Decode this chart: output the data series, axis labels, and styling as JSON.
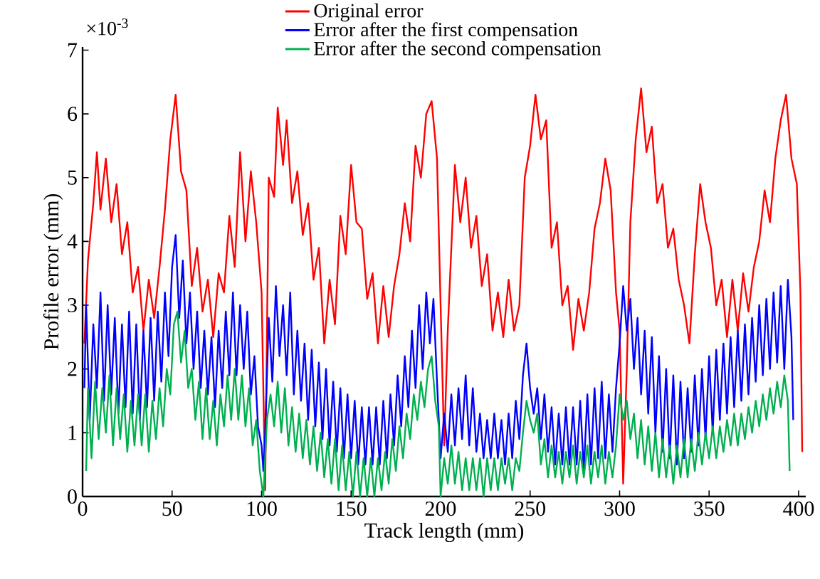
{
  "chart_data": {
    "type": "line",
    "xlabel": "Track length (mm)",
    "ylabel": "Profile error (mm)",
    "annotations": [
      "×10$^{-3}$"
    ],
    "xlim": [
      0,
      404
    ],
    "ylim": [
      0,
      7.05
    ],
    "xticks": [
      0,
      50,
      100,
      150,
      200,
      250,
      300,
      350,
      400
    ],
    "yticks": [
      0,
      1,
      2,
      3,
      4,
      5,
      6,
      7
    ],
    "legend": "top",
    "grid": false,
    "line_style": "solid",
    "marker": "none",
    "series": [
      {
        "name": "Original error",
        "color": "#ff0000",
        "x": [
          1,
          3,
          6,
          8,
          10,
          13,
          16,
          19,
          22,
          25,
          28,
          31,
          34,
          37,
          40,
          43,
          46,
          49,
          52,
          55,
          58,
          61,
          64,
          67,
          70,
          73,
          76,
          79,
          82,
          85,
          88,
          91,
          94,
          97,
          100,
          102,
          104,
          107,
          109,
          112,
          114,
          117,
          120,
          123,
          126,
          129,
          132,
          135,
          138,
          141,
          144,
          147,
          150,
          153,
          156,
          159,
          162,
          165,
          168,
          171,
          174,
          177,
          180,
          183,
          186,
          189,
          192,
          195,
          198,
          200,
          202,
          204,
          206,
          208,
          211,
          214,
          217,
          220,
          223,
          226,
          229,
          232,
          235,
          238,
          241,
          244,
          247,
          250,
          253,
          256,
          259,
          262,
          265,
          268,
          271,
          274,
          277,
          280,
          283,
          286,
          289,
          292,
          295,
          298,
          300,
          302,
          304,
          306,
          309,
          312,
          315,
          318,
          321,
          324,
          327,
          330,
          333,
          336,
          339,
          342,
          345,
          348,
          351,
          354,
          357,
          360,
          363,
          366,
          369,
          372,
          375,
          378,
          381,
          384,
          387,
          390,
          393,
          396,
          399,
          401,
          402
        ],
        "values": [
          2.4,
          3.7,
          4.6,
          5.4,
          4.5,
          5.3,
          4.3,
          4.9,
          3.8,
          4.3,
          3.2,
          3.6,
          2.6,
          3.4,
          2.8,
          3.6,
          4.5,
          5.6,
          6.3,
          5.1,
          4.8,
          3.3,
          3.9,
          2.9,
          3.4,
          2.5,
          3.5,
          3.2,
          4.4,
          3.6,
          5.4,
          4.0,
          5.1,
          4.3,
          3.2,
          0.1,
          5.0,
          4.7,
          6.1,
          5.2,
          5.9,
          4.6,
          5.1,
          4.1,
          4.6,
          3.4,
          3.9,
          2.4,
          3.4,
          2.7,
          4.4,
          3.8,
          5.2,
          4.3,
          4.2,
          3.1,
          3.5,
          2.4,
          3.3,
          2.5,
          3.3,
          3.8,
          4.6,
          4.0,
          5.5,
          5.0,
          6.0,
          6.2,
          5.3,
          3.0,
          0.8,
          2.6,
          3.9,
          5.2,
          4.3,
          5.0,
          3.9,
          4.4,
          3.3,
          3.8,
          2.6,
          3.2,
          2.5,
          3.4,
          2.6,
          3.0,
          5.0,
          5.5,
          6.3,
          5.6,
          5.9,
          3.9,
          4.3,
          3.0,
          3.3,
          2.3,
          3.1,
          2.6,
          3.2,
          4.2,
          4.6,
          5.3,
          4.8,
          3.2,
          2.6,
          0.2,
          2.0,
          4.3,
          5.6,
          6.4,
          5.4,
          5.8,
          4.6,
          4.9,
          3.9,
          4.2,
          3.4,
          3.0,
          2.4,
          3.8,
          4.9,
          4.3,
          3.9,
          3.0,
          3.4,
          2.5,
          3.4,
          2.6,
          3.5,
          2.9,
          3.6,
          4.0,
          4.8,
          4.3,
          5.3,
          5.9,
          6.3,
          5.3,
          4.9,
          3.2,
          0.7
        ]
      },
      {
        "name": "Error after the first compensation",
        "color": "#0000ff",
        "x": [
          1,
          2,
          4,
          6,
          8,
          10,
          12,
          14,
          16,
          18,
          20,
          22,
          24,
          26,
          28,
          30,
          32,
          34,
          36,
          38,
          40,
          42,
          44,
          46,
          48,
          50,
          52,
          54,
          56,
          58,
          60,
          62,
          64,
          66,
          68,
          70,
          72,
          74,
          76,
          78,
          80,
          82,
          84,
          86,
          88,
          90,
          92,
          94,
          96,
          98,
          100,
          101,
          102,
          104,
          106,
          108,
          110,
          112,
          114,
          116,
          118,
          120,
          122,
          124,
          126,
          128,
          130,
          132,
          134,
          136,
          138,
          140,
          142,
          144,
          146,
          148,
          150,
          152,
          154,
          156,
          158,
          160,
          162,
          164,
          166,
          168,
          170,
          172,
          174,
          176,
          178,
          180,
          182,
          184,
          186,
          188,
          190,
          192,
          194,
          196,
          198,
          200,
          202,
          204,
          206,
          208,
          210,
          212,
          214,
          216,
          218,
          220,
          222,
          224,
          226,
          228,
          230,
          232,
          234,
          236,
          238,
          240,
          242,
          244,
          246,
          248,
          250,
          252,
          254,
          256,
          258,
          260,
          262,
          264,
          266,
          268,
          270,
          272,
          274,
          276,
          278,
          280,
          282,
          284,
          286,
          288,
          290,
          292,
          294,
          296,
          298,
          300,
          302,
          304,
          306,
          308,
          310,
          312,
          314,
          316,
          318,
          320,
          322,
          324,
          326,
          328,
          330,
          332,
          334,
          336,
          338,
          340,
          342,
          344,
          346,
          348,
          350,
          352,
          354,
          356,
          358,
          360,
          362,
          364,
          366,
          368,
          370,
          372,
          374,
          376,
          378,
          380,
          382,
          384,
          386,
          388,
          390,
          392,
          394,
          396,
          397
        ],
        "values": [
          1.7,
          3.0,
          1.2,
          2.7,
          1.7,
          3.2,
          1.5,
          3.0,
          1.6,
          2.8,
          1.3,
          2.7,
          1.4,
          2.9,
          1.3,
          2.7,
          1.2,
          2.6,
          1.4,
          2.8,
          1.5,
          2.9,
          1.8,
          3.2,
          2.2,
          3.6,
          4.1,
          2.8,
          3.7,
          2.4,
          3.2,
          2.0,
          2.9,
          1.7,
          2.6,
          1.6,
          2.5,
          1.4,
          2.6,
          1.7,
          2.9,
          1.9,
          3.2,
          1.9,
          3.0,
          2.0,
          2.9,
          1.6,
          2.2,
          1.1,
          0.8,
          0.4,
          1.0,
          2.8,
          1.8,
          3.3,
          2.2,
          3.0,
          1.9,
          3.2,
          1.6,
          2.6,
          1.5,
          2.4,
          1.2,
          2.3,
          1.1,
          2.1,
          0.9,
          2.0,
          0.8,
          1.8,
          0.7,
          1.7,
          0.6,
          1.6,
          0.6,
          1.5,
          0.5,
          1.4,
          0.5,
          1.4,
          0.5,
          1.4,
          0.5,
          1.5,
          0.6,
          1.6,
          0.8,
          1.9,
          1.1,
          2.2,
          1.4,
          2.6,
          1.7,
          3.0,
          2.0,
          3.2,
          2.4,
          3.1,
          1.8,
          0.6,
          1.3,
          0.7,
          1.6,
          0.8,
          1.7,
          0.9,
          1.9,
          0.8,
          1.7,
          0.7,
          1.3,
          0.6,
          1.2,
          0.6,
          1.3,
          0.6,
          1.2,
          0.5,
          1.3,
          0.6,
          1.5,
          0.9,
          1.9,
          2.4,
          1.7,
          1.3,
          1.7,
          0.9,
          1.6,
          0.7,
          1.4,
          0.5,
          1.3,
          0.5,
          1.4,
          0.5,
          1.4,
          0.5,
          1.5,
          0.4,
          1.6,
          0.5,
          1.7,
          0.6,
          1.8,
          0.6,
          1.6,
          0.7,
          1.7,
          2.4,
          3.3,
          2.6,
          3.1,
          2.0,
          2.8,
          1.6,
          2.6,
          1.3,
          2.5,
          1.0,
          2.2,
          0.7,
          2.0,
          0.6,
          1.9,
          0.5,
          1.8,
          0.6,
          1.7,
          0.7,
          1.9,
          0.8,
          2.0,
          0.9,
          2.2,
          1.0,
          2.3,
          1.2,
          2.4,
          1.3,
          2.5,
          1.4,
          2.6,
          1.5,
          2.7,
          1.6,
          2.8,
          1.8,
          3.0,
          1.9,
          3.1,
          2.0,
          3.2,
          2.1,
          3.3,
          2.0,
          3.4,
          2.5,
          1.2
        ]
      },
      {
        "name": "Error after the second compensation",
        "color": "#00b050",
        "x": [
          2,
          3,
          5,
          7,
          9,
          11,
          13,
          15,
          17,
          19,
          21,
          23,
          25,
          27,
          29,
          31,
          33,
          35,
          37,
          39,
          41,
          43,
          45,
          47,
          49,
          51,
          53,
          55,
          57,
          59,
          61,
          63,
          65,
          67,
          69,
          71,
          73,
          75,
          77,
          79,
          81,
          83,
          85,
          87,
          89,
          91,
          93,
          95,
          97,
          99,
          101,
          103,
          105,
          107,
          109,
          111,
          113,
          115,
          117,
          119,
          121,
          123,
          125,
          127,
          129,
          131,
          133,
          135,
          137,
          139,
          141,
          143,
          145,
          147,
          149,
          151,
          153,
          155,
          157,
          159,
          161,
          163,
          165,
          167,
          169,
          171,
          173,
          175,
          177,
          179,
          181,
          183,
          185,
          187,
          189,
          191,
          193,
          195,
          197,
          199,
          200,
          202,
          204,
          206,
          208,
          210,
          212,
          214,
          216,
          218,
          220,
          222,
          224,
          226,
          228,
          230,
          232,
          234,
          236,
          238,
          240,
          242,
          244,
          246,
          248,
          250,
          252,
          254,
          256,
          258,
          260,
          262,
          264,
          266,
          268,
          270,
          272,
          274,
          276,
          278,
          280,
          282,
          284,
          286,
          288,
          290,
          292,
          294,
          296,
          298,
          300,
          302,
          304,
          306,
          308,
          310,
          312,
          314,
          316,
          318,
          320,
          322,
          324,
          326,
          328,
          330,
          332,
          334,
          336,
          338,
          340,
          342,
          344,
          346,
          348,
          350,
          352,
          354,
          356,
          358,
          360,
          362,
          364,
          366,
          368,
          370,
          372,
          374,
          376,
          378,
          380,
          382,
          384,
          386,
          388,
          390,
          392,
          394,
          395
        ],
        "values": [
          0.4,
          1.7,
          0.6,
          1.8,
          0.9,
          1.7,
          1.0,
          1.9,
          0.8,
          1.7,
          0.9,
          1.6,
          0.7,
          1.5,
          0.8,
          1.6,
          0.8,
          1.6,
          0.7,
          1.5,
          0.9,
          1.7,
          1.1,
          2.0,
          1.6,
          2.7,
          2.9,
          2.1,
          2.6,
          1.7,
          2.0,
          1.2,
          1.8,
          0.9,
          1.7,
          0.9,
          1.5,
          0.8,
          1.6,
          1.1,
          1.9,
          1.2,
          2.0,
          1.2,
          1.9,
          1.1,
          1.7,
          0.8,
          1.2,
          0.4,
          0.0,
          1.2,
          1.6,
          1.1,
          1.8,
          1.0,
          1.7,
          0.8,
          1.4,
          0.7,
          1.3,
          0.6,
          1.2,
          0.5,
          1.1,
          0.4,
          1.0,
          0.3,
          0.9,
          0.2,
          0.9,
          0.1,
          0.8,
          0.1,
          0.7,
          0.0,
          0.7,
          0.0,
          0.6,
          0.0,
          0.6,
          0.0,
          0.6,
          0.1,
          0.7,
          0.2,
          0.9,
          0.4,
          1.1,
          0.6,
          1.3,
          0.9,
          1.6,
          1.2,
          1.8,
          1.4,
          2.0,
          2.2,
          1.5,
          1.1,
          0.0,
          0.6,
          0.2,
          0.8,
          0.2,
          0.7,
          0.1,
          0.6,
          0.1,
          0.6,
          0.1,
          0.6,
          0.0,
          0.6,
          0.1,
          0.6,
          0.1,
          0.6,
          0.2,
          0.6,
          0.1,
          0.6,
          0.4,
          1.0,
          1.5,
          1.2,
          1.0,
          1.3,
          0.5,
          0.9,
          0.3,
          0.8,
          0.3,
          0.7,
          0.2,
          0.7,
          0.3,
          0.8,
          0.2,
          0.7,
          0.3,
          0.8,
          0.2,
          0.7,
          0.3,
          0.8,
          0.2,
          0.7,
          0.3,
          0.8,
          1.6,
          1.2,
          1.5,
          0.9,
          1.3,
          0.6,
          1.2,
          0.5,
          1.1,
          0.4,
          1.0,
          0.3,
          0.9,
          0.3,
          0.8,
          0.2,
          0.8,
          0.3,
          0.9,
          0.3,
          0.9,
          0.4,
          1.0,
          0.5,
          1.0,
          0.6,
          1.1,
          0.6,
          1.1,
          0.7,
          1.2,
          0.8,
          1.3,
          0.8,
          1.3,
          0.9,
          1.4,
          1.0,
          1.5,
          1.1,
          1.6,
          1.2,
          1.7,
          1.3,
          1.8,
          1.4,
          1.9,
          1.5,
          0.4
        ]
      }
    ]
  }
}
